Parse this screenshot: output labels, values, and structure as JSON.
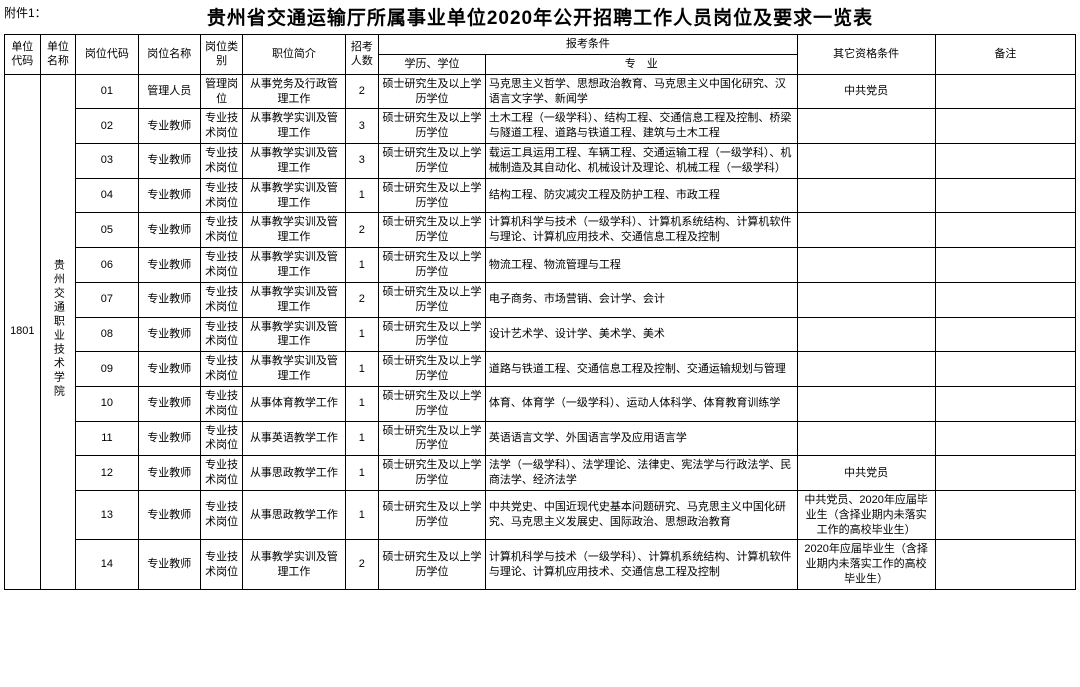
{
  "attachment_label": "附件1：",
  "title": "贵州省交通运输厅所属事业单位2020年公开招聘工作人员岗位及要求一览表",
  "columns": {
    "unit_code": "单位代码",
    "unit_name": "单位名称",
    "post_code": "岗位代码",
    "post_name": "岗位名称",
    "post_type": "岗位类别",
    "post_desc": "职位简介",
    "recruits": "招考人数",
    "cond_group": "报考条件",
    "education": "学历、学位",
    "major": "专　业",
    "other_qual": "其它资格条件",
    "remark": "备注"
  },
  "unit": {
    "code": "1801",
    "name": "贵州交通职业技术学院"
  },
  "rows": [
    {
      "code": "01",
      "name": "管理人员",
      "type": "管理岗位",
      "desc": "从事党务及行政管理工作",
      "num": "2",
      "edu": "硕士研究生及以上学历学位",
      "major": "马克思主义哲学、思想政治教育、马克思主义中国化研究、汉语言文字学、新闻学",
      "other": "中共党员",
      "remark": ""
    },
    {
      "code": "02",
      "name": "专业教师",
      "type": "专业技术岗位",
      "desc": "从事教学实训及管理工作",
      "num": "3",
      "edu": "硕士研究生及以上学历学位",
      "major": "土木工程（一级学科）、结构工程、交通信息工程及控制、桥梁与隧道工程、道路与铁道工程、建筑与土木工程",
      "other": "",
      "remark": ""
    },
    {
      "code": "03",
      "name": "专业教师",
      "type": "专业技术岗位",
      "desc": "从事教学实训及管理工作",
      "num": "3",
      "edu": "硕士研究生及以上学历学位",
      "major": "载运工具运用工程、车辆工程、交通运输工程（一级学科）、机械制造及其自动化、机械设计及理论、机械工程（一级学科）",
      "other": "",
      "remark": ""
    },
    {
      "code": "04",
      "name": "专业教师",
      "type": "专业技术岗位",
      "desc": "从事教学实训及管理工作",
      "num": "1",
      "edu": "硕士研究生及以上学历学位",
      "major": "结构工程、防灾减灾工程及防护工程、市政工程",
      "other": "",
      "remark": ""
    },
    {
      "code": "05",
      "name": "专业教师",
      "type": "专业技术岗位",
      "desc": "从事教学实训及管理工作",
      "num": "2",
      "edu": "硕士研究生及以上学历学位",
      "major": "计算机科学与技术（一级学科）、计算机系统结构、计算机软件与理论、计算机应用技术、交通信息工程及控制",
      "other": "",
      "remark": ""
    },
    {
      "code": "06",
      "name": "专业教师",
      "type": "专业技术岗位",
      "desc": "从事教学实训及管理工作",
      "num": "1",
      "edu": "硕士研究生及以上学历学位",
      "major": "物流工程、物流管理与工程",
      "other": "",
      "remark": ""
    },
    {
      "code": "07",
      "name": "专业教师",
      "type": "专业技术岗位",
      "desc": "从事教学实训及管理工作",
      "num": "2",
      "edu": "硕士研究生及以上学历学位",
      "major": "电子商务、市场营销、会计学、会计",
      "other": "",
      "remark": ""
    },
    {
      "code": "08",
      "name": "专业教师",
      "type": "专业技术岗位",
      "desc": "从事教学实训及管理工作",
      "num": "1",
      "edu": "硕士研究生及以上学历学位",
      "major": "设计艺术学、设计学、美术学、美术",
      "other": "",
      "remark": ""
    },
    {
      "code": "09",
      "name": "专业教师",
      "type": "专业技术岗位",
      "desc": "从事教学实训及管理工作",
      "num": "1",
      "edu": "硕士研究生及以上学历学位",
      "major": "道路与铁道工程、交通信息工程及控制、交通运输规划与管理",
      "other": "",
      "remark": ""
    },
    {
      "code": "10",
      "name": "专业教师",
      "type": "专业技术岗位",
      "desc": "从事体育教学工作",
      "num": "1",
      "edu": "硕士研究生及以上学历学位",
      "major": "体育、体育学（一级学科）、运动人体科学、体育教育训练学",
      "other": "",
      "remark": ""
    },
    {
      "code": "11",
      "name": "专业教师",
      "type": "专业技术岗位",
      "desc": "从事英语教学工作",
      "num": "1",
      "edu": "硕士研究生及以上学历学位",
      "major": "英语语言文学、外国语言学及应用语言学",
      "other": "",
      "remark": ""
    },
    {
      "code": "12",
      "name": "专业教师",
      "type": "专业技术岗位",
      "desc": "从事思政教学工作",
      "num": "1",
      "edu": "硕士研究生及以上学历学位",
      "major": "法学（一级学科）、法学理论、法律史、宪法学与行政法学、民商法学、经济法学",
      "other": "中共党员",
      "remark": ""
    },
    {
      "code": "13",
      "name": "专业教师",
      "type": "专业技术岗位",
      "desc": "从事思政教学工作",
      "num": "1",
      "edu": "硕士研究生及以上学历学位",
      "major": "中共党史、中国近现代史基本问题研究、马克思主义中国化研究、马克思主义发展史、国际政治、思想政治教育",
      "other": "中共党员、2020年应届毕业生（含择业期内未落实工作的高校毕业生）",
      "remark": ""
    },
    {
      "code": "14",
      "name": "专业教师",
      "type": "专业技术岗位",
      "desc": "从事教学实训及管理工作",
      "num": "2",
      "edu": "硕士研究生及以上学历学位",
      "major": "计算机科学与技术（一级学科）、计算机系统结构、计算机软件与理论、计算机应用技术、交通信息工程及控制",
      "other": "2020年应届毕业生（含择业期内未落实工作的高校毕业生）",
      "remark": ""
    }
  ],
  "style": {
    "background": "#ffffff",
    "border": "#000000",
    "font_family": "SimSun",
    "base_font_size": 11,
    "title_font_size": 19
  }
}
